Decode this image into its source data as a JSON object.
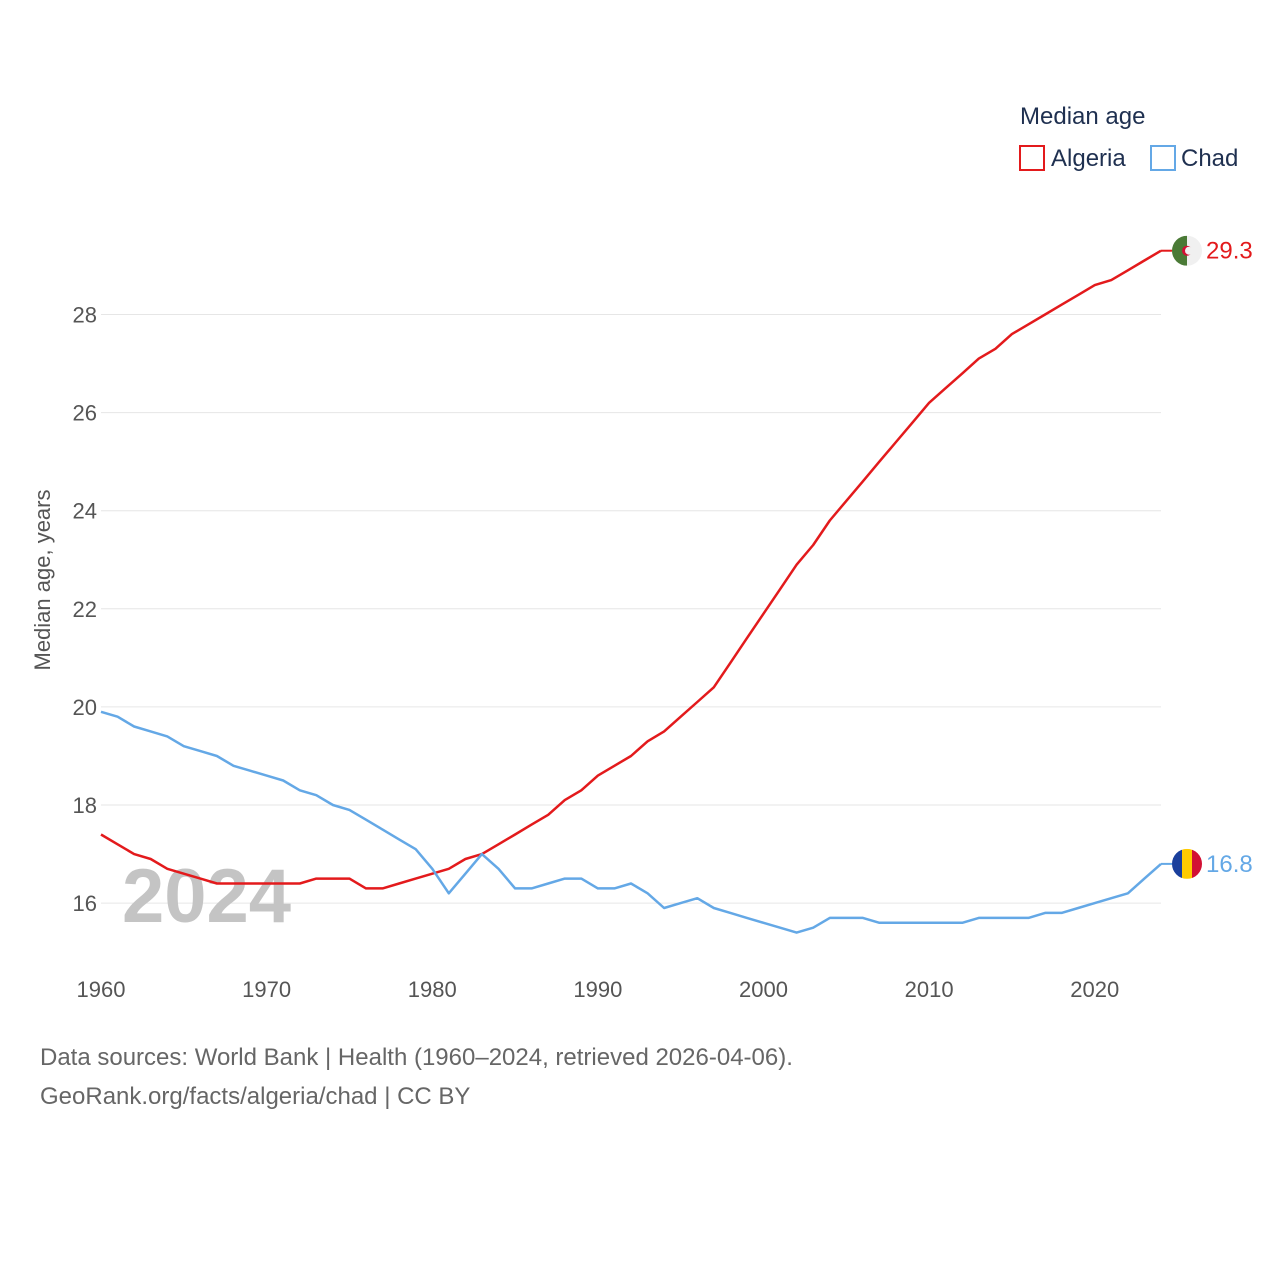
{
  "chart_data": {
    "type": "line",
    "title": "Median age",
    "ylabel": "Median age, years",
    "xlabel": "",
    "xlim": [
      1960,
      2024
    ],
    "ylim": [
      14.8,
      29.6
    ],
    "x_ticks": [
      1960,
      1970,
      1980,
      1990,
      2000,
      2010,
      2020
    ],
    "y_ticks": [
      16,
      18,
      20,
      22,
      24,
      26,
      28
    ],
    "x_tick_labels": [
      "1960",
      "1970",
      "1980",
      "1990",
      "2000",
      "2010",
      "2020"
    ],
    "y_tick_labels": [
      "16",
      "18",
      "20",
      "22",
      "24",
      "26",
      "28"
    ],
    "watermark_year": "2024",
    "legend_placement": "top-right",
    "x": [
      1960,
      1961,
      1962,
      1963,
      1964,
      1965,
      1966,
      1967,
      1968,
      1969,
      1970,
      1971,
      1972,
      1973,
      1974,
      1975,
      1976,
      1977,
      1978,
      1979,
      1980,
      1981,
      1982,
      1983,
      1984,
      1985,
      1986,
      1987,
      1988,
      1989,
      1990,
      1991,
      1992,
      1993,
      1994,
      1995,
      1996,
      1997,
      1998,
      1999,
      2000,
      2001,
      2002,
      2003,
      2004,
      2005,
      2006,
      2007,
      2008,
      2009,
      2010,
      2011,
      2012,
      2013,
      2014,
      2015,
      2016,
      2017,
      2018,
      2019,
      2020,
      2021,
      2022,
      2023,
      2024
    ],
    "series": [
      {
        "name": "Algeria",
        "color": "#e31a1c",
        "flag": "algeria-flag",
        "end_label": "29.3",
        "values": [
          17.4,
          17.2,
          17.0,
          16.9,
          16.7,
          16.6,
          16.5,
          16.4,
          16.4,
          16.4,
          16.4,
          16.4,
          16.4,
          16.5,
          16.5,
          16.5,
          16.3,
          16.3,
          16.4,
          16.5,
          16.6,
          16.7,
          16.9,
          17.0,
          17.2,
          17.4,
          17.6,
          17.8,
          18.1,
          18.3,
          18.6,
          18.8,
          19.0,
          19.3,
          19.5,
          19.8,
          20.1,
          20.4,
          20.9,
          21.4,
          21.9,
          22.4,
          22.9,
          23.3,
          23.8,
          24.2,
          24.6,
          25.0,
          25.4,
          25.8,
          26.2,
          26.5,
          26.8,
          27.1,
          27.3,
          27.6,
          27.8,
          28.0,
          28.2,
          28.4,
          28.6,
          28.7,
          28.9,
          29.1,
          29.3
        ]
      },
      {
        "name": "Chad",
        "color": "#64a8e6",
        "flag": "chad-flag",
        "end_label": "16.8",
        "values": [
          19.9,
          19.8,
          19.6,
          19.5,
          19.4,
          19.2,
          19.1,
          19.0,
          18.8,
          18.7,
          18.6,
          18.5,
          18.3,
          18.2,
          18.0,
          17.9,
          17.7,
          17.5,
          17.3,
          17.1,
          16.7,
          16.2,
          16.6,
          17.0,
          16.7,
          16.3,
          16.3,
          16.4,
          16.5,
          16.5,
          16.3,
          16.3,
          16.4,
          16.2,
          15.9,
          16.0,
          16.1,
          15.9,
          15.8,
          15.7,
          15.6,
          15.5,
          15.4,
          15.5,
          15.7,
          15.7,
          15.7,
          15.6,
          15.6,
          15.6,
          15.6,
          15.6,
          15.6,
          15.7,
          15.7,
          15.7,
          15.7,
          15.8,
          15.8,
          15.9,
          16.0,
          16.1,
          16.2,
          16.5,
          16.8
        ]
      }
    ]
  },
  "footer": {
    "source": "Data sources: World Bank | Health (1960–2024, retrieved 2026-04-06).",
    "credit": "GeoRank.org/facts/algeria/chad | CC BY"
  }
}
